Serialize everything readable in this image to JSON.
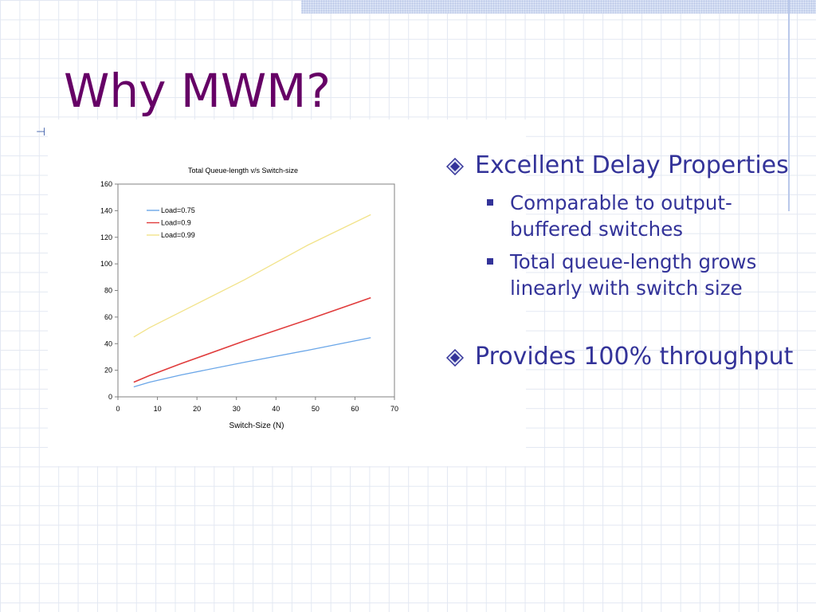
{
  "slide": {
    "title": "Why MWM?",
    "bullets": [
      {
        "text": "Excellent Delay Properties",
        "sub": [
          "Comparable to output-buffered switches",
          "Total queue-length grows linearly with switch size"
        ]
      },
      {
        "text": "Provides 100% throughput",
        "sub": []
      }
    ],
    "colors": {
      "title": "#660066",
      "bullet_text": "#333399",
      "bullet_diamond": "#333399"
    },
    "icons": {
      "level1": "diamond-bullet-icon",
      "level2": "square-bullet-icon"
    }
  },
  "chart_data": {
    "type": "line",
    "title": "Total Queue-length v/s Switch-size",
    "xlabel": "Switch-Size (N)",
    "ylabel": "",
    "xlim": [
      0,
      70
    ],
    "ylim": [
      0,
      160
    ],
    "x_ticks": [
      "0",
      "10",
      "20",
      "30",
      "40",
      "50",
      "60",
      "70"
    ],
    "y_ticks": [
      "0",
      "20",
      "40",
      "60",
      "80",
      "100",
      "120",
      "140",
      "160"
    ],
    "grid": false,
    "legend_position": "top-left",
    "series": [
      {
        "name": "Load=0.75",
        "color": "#6aa6e8",
        "x": [
          4,
          8,
          16,
          32,
          48,
          64
        ],
        "y": [
          7.5,
          11,
          16.5,
          26,
          35,
          44.5
        ]
      },
      {
        "name": "Load=0.9",
        "color": "#e03c3c",
        "x": [
          4,
          8,
          16,
          32,
          48,
          64
        ],
        "y": [
          11,
          16,
          25,
          42,
          58,
          74.5
        ]
      },
      {
        "name": "Load=0.99",
        "color": "#f2e38a",
        "x": [
          4,
          8,
          16,
          32,
          48,
          64
        ],
        "y": [
          45,
          52,
          64,
          88,
          114,
          137
        ]
      }
    ]
  }
}
